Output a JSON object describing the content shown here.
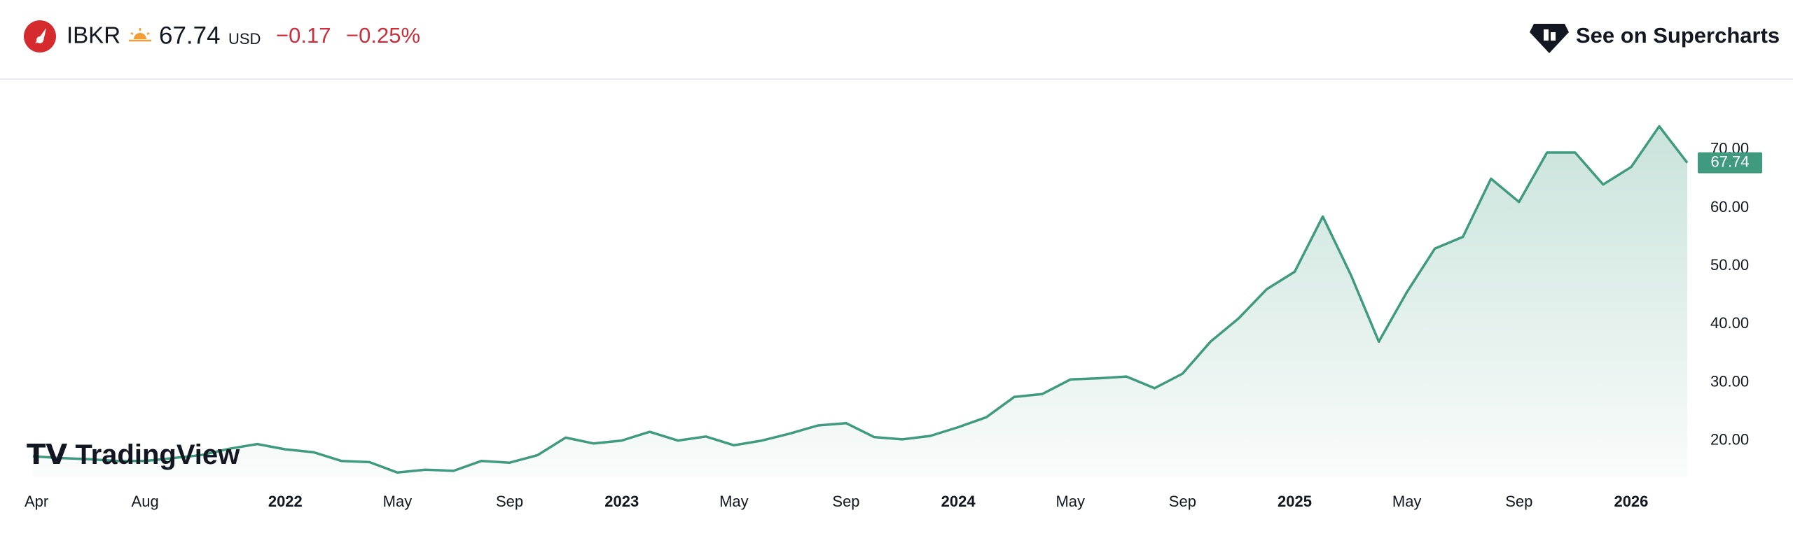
{
  "header": {
    "symbol": "IBKR",
    "price": "67.74",
    "currency": "USD",
    "change": "−0.17",
    "change_percent": "−0.25%",
    "link": "See on Supercharts"
  },
  "watermark": "TradingView",
  "chart_data": {
    "type": "line",
    "color": "#3f9a7e",
    "x": [
      "2021-04",
      "2021-05",
      "2021-06",
      "2021-07",
      "2021-08",
      "2021-09",
      "2021-10",
      "2021-11",
      "2021-12",
      "2022-01",
      "2022-02",
      "2022-03",
      "2022-04",
      "2022-05",
      "2022-06",
      "2022-07",
      "2022-08",
      "2022-09",
      "2022-10",
      "2022-11",
      "2022-12",
      "2023-01",
      "2023-02",
      "2023-03",
      "2023-04",
      "2023-05",
      "2023-06",
      "2023-07",
      "2023-08",
      "2023-09",
      "2023-10",
      "2023-11",
      "2023-12",
      "2024-01",
      "2024-02",
      "2024-03",
      "2024-04",
      "2024-05",
      "2024-06",
      "2024-07",
      "2024-08",
      "2024-09",
      "2024-10",
      "2024-11",
      "2024-12",
      "2025-01",
      "2025-02",
      "2025-03",
      "2025-04",
      "2025-05",
      "2025-06",
      "2025-07",
      "2025-08",
      "2025-09",
      "2025-10",
      "2025-11",
      "2025-12",
      "2026-01",
      "2026-02",
      "2026-03"
    ],
    "values": [
      17.3,
      17,
      16.8,
      16.5,
      16.5,
      17,
      17.5,
      18.6,
      19.4,
      18.5,
      18,
      16.5,
      16.3,
      14.5,
      15,
      14.8,
      16.5,
      16.2,
      17.5,
      20.5,
      19.5,
      20,
      21.5,
      20,
      20.7,
      19.2,
      20,
      21.2,
      22.6,
      23,
      20.6,
      20.2,
      20.8,
      22.3,
      24,
      27.5,
      28,
      30.5,
      30.7,
      31,
      29,
      31.5,
      37,
      41,
      46,
      49,
      58.5,
      48.5,
      37,
      45.5,
      53,
      55,
      65,
      61,
      69.5,
      69.5,
      64,
      67,
      74,
      67.74
    ],
    "xlim": [
      "2021-04",
      "2026-03"
    ],
    "xticks": [
      {
        "value": "2021-04",
        "label": "Apr"
      },
      {
        "value": "2021-08",
        "label": "Aug"
      },
      {
        "value": "2022-01",
        "label": "2022"
      },
      {
        "value": "2022-05",
        "label": "May"
      },
      {
        "value": "2022-09",
        "label": "Sep"
      },
      {
        "value": "2023-01",
        "label": "2023"
      },
      {
        "value": "2023-05",
        "label": "May"
      },
      {
        "value": "2023-09",
        "label": "Sep"
      },
      {
        "value": "2024-01",
        "label": "2024"
      },
      {
        "value": "2024-05",
        "label": "May"
      },
      {
        "value": "2024-09",
        "label": "Sep"
      },
      {
        "value": "2025-01",
        "label": "2025"
      },
      {
        "value": "2025-05",
        "label": "May"
      },
      {
        "value": "2025-09",
        "label": "Sep"
      },
      {
        "value": "2026-01",
        "label": "2026"
      }
    ],
    "ylim": [
      13.7,
      82
    ],
    "yticks": [
      {
        "value": 20,
        "label": "20.00"
      },
      {
        "value": 30,
        "label": "30.00"
      },
      {
        "value": 40,
        "label": "40.00"
      },
      {
        "value": 50,
        "label": "50.00"
      },
      {
        "value": 60,
        "label": "60.00"
      },
      {
        "value": 70,
        "label": "70.00"
      }
    ]
  }
}
